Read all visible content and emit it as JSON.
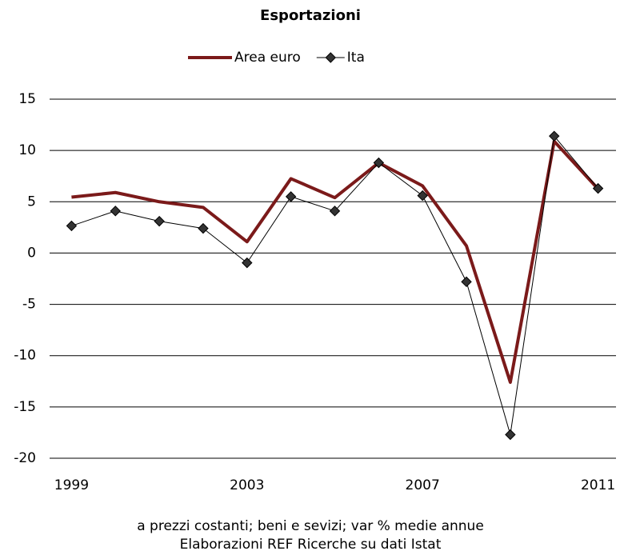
{
  "chart_data": {
    "type": "line",
    "title": "Esportazioni",
    "x": [
      1999,
      2000,
      2001,
      2002,
      2003,
      2004,
      2005,
      2006,
      2007,
      2008,
      2009,
      2010,
      2011
    ],
    "series": [
      {
        "name": "Area euro",
        "color": "#7b1a1a",
        "marker": "none",
        "values": [
          5.45,
          5.9,
          5.0,
          4.45,
          1.1,
          7.25,
          5.4,
          8.8,
          6.55,
          0.7,
          -12.6,
          10.9,
          6.25
        ]
      },
      {
        "name": "Ita",
        "color": "#000000",
        "marker": "diamond",
        "values": [
          2.65,
          4.1,
          3.1,
          2.4,
          -0.95,
          5.5,
          4.1,
          8.8,
          5.6,
          -2.8,
          -17.7,
          11.4,
          6.3
        ]
      }
    ],
    "xlim": [
      1998.5,
      2011.5
    ],
    "xticks": [
      1999,
      2003,
      2007,
      2011
    ],
    "ylim": [
      -20,
      15
    ],
    "yticks": [
      -20,
      -15,
      -10,
      -5,
      0,
      5,
      10,
      15
    ],
    "grid": true,
    "legend": "top",
    "notes": [
      "a prezzi costanti; beni e sevizi; var % medie annue",
      "Elaborazioni REF Ricerche su dati Istat"
    ]
  }
}
